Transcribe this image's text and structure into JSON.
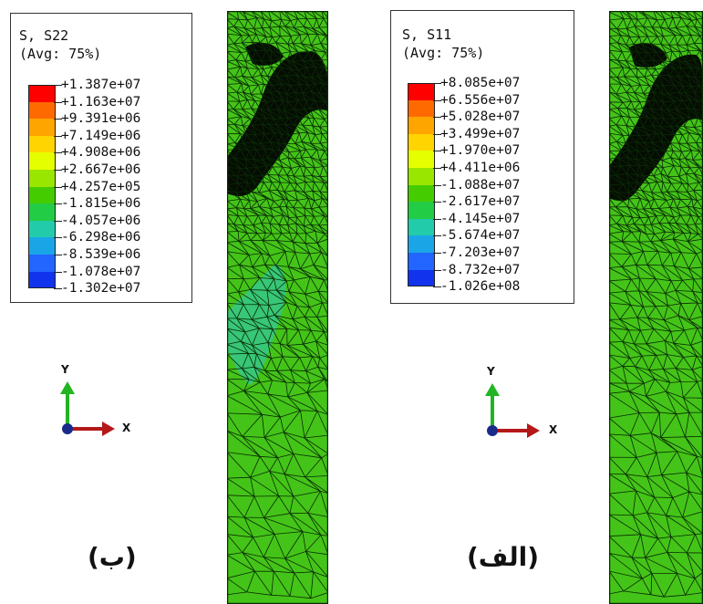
{
  "panels": [
    {
      "id": "b",
      "legend_title_1": "S, S22",
      "legend_title_2": "(Avg: 75%)",
      "legend_values": [
        "+1.387e+07",
        "+1.163e+07",
        "+9.391e+06",
        "+7.149e+06",
        "+4.908e+06",
        "+2.667e+06",
        "+4.257e+05",
        "-1.815e+06",
        "-4.057e+06",
        "-6.298e+06",
        "-8.539e+06",
        "-1.078e+07",
        "-1.302e+07"
      ],
      "axis_y": "Y",
      "axis_x": "X",
      "caption": "(ب)"
    },
    {
      "id": "alef",
      "legend_title_1": "S, S11",
      "legend_title_2": "(Avg: 75%)",
      "legend_values": [
        "+8.085e+07",
        "+6.556e+07",
        "+5.028e+07",
        "+3.499e+07",
        "+1.970e+07",
        "+4.411e+06",
        "-1.088e+07",
        "-2.617e+07",
        "-4.145e+07",
        "-5.674e+07",
        "-7.203e+07",
        "-8.732e+07",
        "-1.026e+08"
      ],
      "axis_y": "Y",
      "axis_x": "X",
      "caption": "(الف)"
    }
  ],
  "colors": {
    "scale": [
      "#ff0000",
      "#ff6a00",
      "#ffa500",
      "#ffd400",
      "#e6ff00",
      "#99e600",
      "#44cc00",
      "#22cc44",
      "#22ccaa",
      "#1aa6e6",
      "#2266ff",
      "#1133ee",
      "#0000cc"
    ],
    "mesh_fill": "#44c418",
    "mesh_line": "#0a2a06",
    "axis_y_arrow": "#22b422",
    "axis_x_arrow": "#b41818",
    "origin": "#1a2a8a"
  }
}
